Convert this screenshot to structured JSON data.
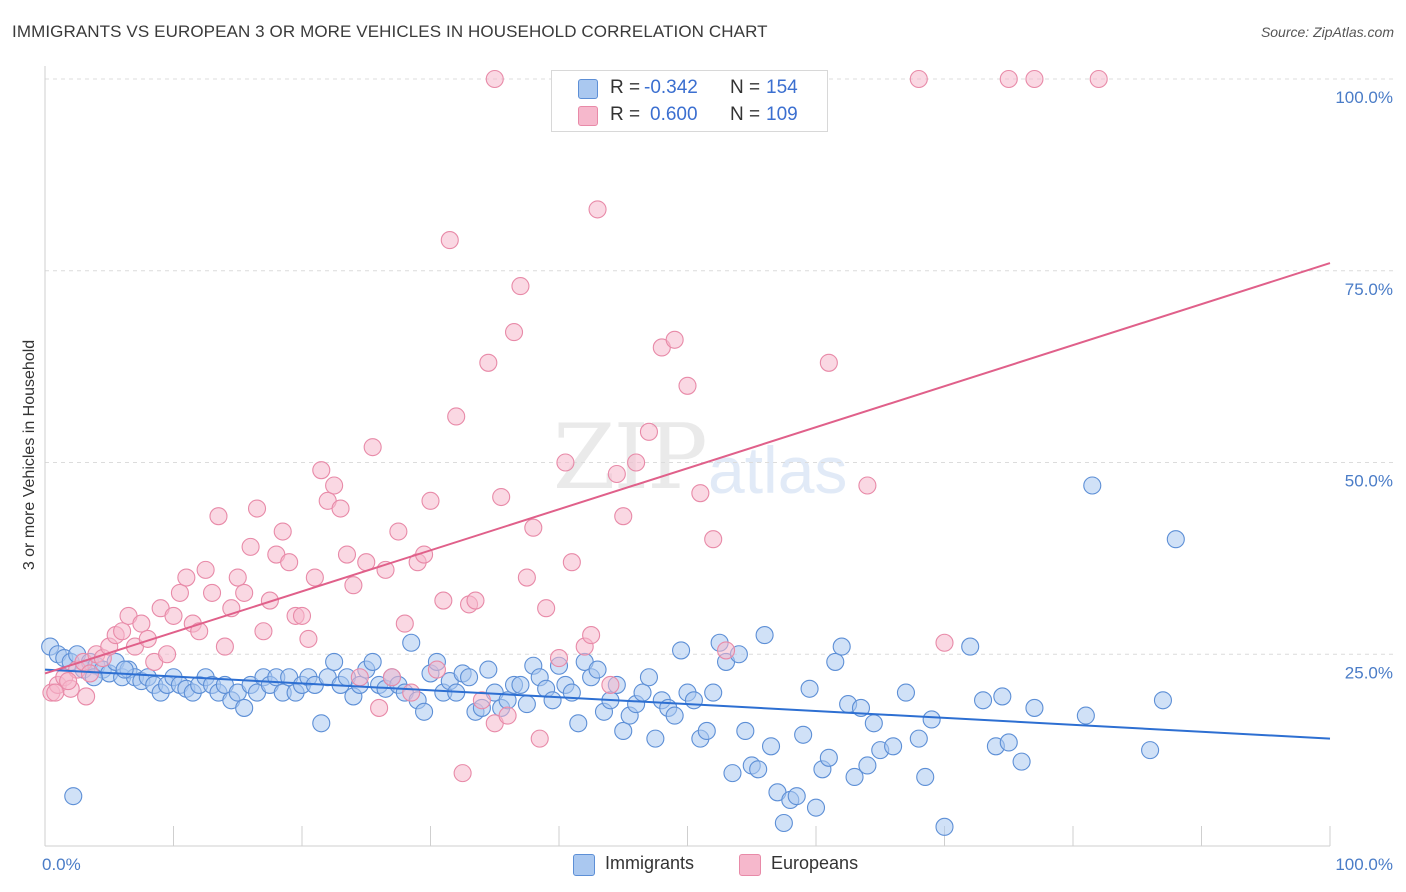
{
  "title": "IMMIGRANTS VS EUROPEAN 3 OR MORE VEHICLES IN HOUSEHOLD CORRELATION CHART",
  "source": "Source: ZipAtlas.com",
  "watermark": {
    "zip": "ZIP",
    "atlas": "atlas"
  },
  "legend": {
    "rows": [
      {
        "r_label": "R =",
        "r_value": "-0.342",
        "n_label": "N =",
        "n_value": "154",
        "color": "#aac8f0"
      },
      {
        "r_label": "R =",
        "r_value": "0.600",
        "n_label": "N =",
        "n_value": "109",
        "color": "#f6b8cc"
      }
    ]
  },
  "bottom_legend": [
    {
      "label": "Immigrants",
      "color": "#aac8f0"
    },
    {
      "label": "Europeans",
      "color": "#f6b8cc"
    }
  ],
  "chart_data": {
    "type": "scatter",
    "title": "IMMIGRANTS VS EUROPEAN 3 OR MORE VEHICLES IN HOUSEHOLD CORRELATION CHART",
    "xlabel": "",
    "ylabel": "3 or more Vehicles in Household",
    "xlim": [
      0,
      100
    ],
    "ylim": [
      0,
      100
    ],
    "x_tick_labels": [
      "0.0%",
      "100.0%"
    ],
    "y_tick_labels": [
      "25.0%",
      "50.0%",
      "75.0%",
      "100.0%"
    ],
    "y_ticks": [
      25,
      50,
      75,
      100
    ],
    "grid": "horizontal dashed",
    "colors": {
      "immigrants_fill": "#aac8f0",
      "immigrants_edge": "#5d8fd6",
      "immigrants_line": "#2d6fd2",
      "europeans_fill": "#f6b8cc",
      "europeans_edge": "#e88aa8",
      "europeans_line": "#e0608a"
    },
    "series": [
      {
        "name": "Immigrants",
        "trend": {
          "x": [
            0,
            100
          ],
          "y": [
            23,
            14
          ]
        },
        "points": [
          [
            0.4,
            26
          ],
          [
            1,
            25
          ],
          [
            1.5,
            24.5
          ],
          [
            2,
            24
          ],
          [
            2.5,
            25
          ],
          [
            3,
            23
          ],
          [
            3.5,
            24
          ],
          [
            4,
            23.5
          ],
          [
            4.5,
            23
          ],
          [
            5,
            22.5
          ],
          [
            5.5,
            24
          ],
          [
            6,
            22
          ],
          [
            6.5,
            23
          ],
          [
            7,
            22
          ],
          [
            7.5,
            21.5
          ],
          [
            8,
            22
          ],
          [
            8.5,
            21
          ],
          [
            9,
            20
          ],
          [
            9.5,
            21
          ],
          [
            10,
            22
          ],
          [
            10.5,
            21
          ],
          [
            11,
            20.5
          ],
          [
            11.5,
            20
          ],
          [
            12,
            21
          ],
          [
            12.5,
            22
          ],
          [
            13,
            21
          ],
          [
            13.5,
            20
          ],
          [
            14,
            21
          ],
          [
            14.5,
            19
          ],
          [
            15,
            20
          ],
          [
            15.5,
            18
          ],
          [
            16,
            21
          ],
          [
            16.5,
            20
          ],
          [
            17,
            22
          ],
          [
            17.5,
            21
          ],
          [
            18,
            22
          ],
          [
            18.5,
            20
          ],
          [
            19,
            22
          ],
          [
            19.5,
            20
          ],
          [
            20,
            21
          ],
          [
            20.5,
            22
          ],
          [
            21,
            21
          ],
          [
            21.5,
            16
          ],
          [
            22,
            22
          ],
          [
            22.5,
            24
          ],
          [
            23,
            21
          ],
          [
            23.5,
            22
          ],
          [
            24,
            19.5
          ],
          [
            24.5,
            21
          ],
          [
            25,
            23
          ],
          [
            25.5,
            24
          ],
          [
            26,
            21
          ],
          [
            26.5,
            20.5
          ],
          [
            27,
            22
          ],
          [
            27.5,
            21
          ],
          [
            28,
            20
          ],
          [
            28.5,
            26.5
          ],
          [
            29,
            19
          ],
          [
            29.5,
            17.5
          ],
          [
            30,
            22.5
          ],
          [
            30.5,
            24
          ],
          [
            31,
            20
          ],
          [
            31.5,
            21.5
          ],
          [
            32,
            20
          ],
          [
            32.5,
            22.5
          ],
          [
            33,
            22
          ],
          [
            33.5,
            17.5
          ],
          [
            34,
            18
          ],
          [
            34.5,
            23
          ],
          [
            35,
            20
          ],
          [
            35.5,
            18
          ],
          [
            36,
            19
          ],
          [
            36.5,
            21
          ],
          [
            37,
            21
          ],
          [
            37.5,
            18.5
          ],
          [
            38,
            23.5
          ],
          [
            38.5,
            22
          ],
          [
            39,
            20.5
          ],
          [
            39.5,
            19
          ],
          [
            40,
            23.5
          ],
          [
            40.5,
            21
          ],
          [
            41,
            20
          ],
          [
            41.5,
            16
          ],
          [
            42,
            24
          ],
          [
            42.5,
            22
          ],
          [
            43,
            23
          ],
          [
            43.5,
            17.5
          ],
          [
            44,
            19
          ],
          [
            44.5,
            21
          ],
          [
            45,
            15
          ],
          [
            45.5,
            17
          ],
          [
            46,
            18.5
          ],
          [
            46.5,
            20
          ],
          [
            47,
            22
          ],
          [
            47.5,
            14
          ],
          [
            48,
            19
          ],
          [
            48.5,
            18
          ],
          [
            49,
            17
          ],
          [
            49.5,
            25.5
          ],
          [
            50,
            20
          ],
          [
            50.5,
            19
          ],
          [
            51,
            14
          ],
          [
            51.5,
            15
          ],
          [
            52,
            20
          ],
          [
            52.5,
            26.5
          ],
          [
            53,
            24
          ],
          [
            53.5,
            9.5
          ],
          [
            54,
            25
          ],
          [
            54.5,
            15
          ],
          [
            55,
            10.5
          ],
          [
            55.5,
            10
          ],
          [
            56,
            27.5
          ],
          [
            56.5,
            13
          ],
          [
            57,
            7
          ],
          [
            57.5,
            3
          ],
          [
            58,
            6
          ],
          [
            58.5,
            6.5
          ],
          [
            59,
            14.5
          ],
          [
            59.5,
            20.5
          ],
          [
            60,
            5
          ],
          [
            60.5,
            10
          ],
          [
            61,
            11.5
          ],
          [
            61.5,
            24
          ],
          [
            62,
            26
          ],
          [
            62.5,
            18.5
          ],
          [
            63,
            9
          ],
          [
            63.5,
            18
          ],
          [
            64,
            10.5
          ],
          [
            64.5,
            16
          ],
          [
            65,
            12.5
          ],
          [
            66,
            13
          ],
          [
            67,
            20
          ],
          [
            68,
            14
          ],
          [
            68.5,
            9
          ],
          [
            69,
            16.5
          ],
          [
            70,
            2.5
          ],
          [
            72,
            26
          ],
          [
            73,
            19
          ],
          [
            74,
            13
          ],
          [
            74.5,
            19.5
          ],
          [
            75,
            13.5
          ],
          [
            76,
            11
          ],
          [
            77,
            18
          ],
          [
            81,
            17
          ],
          [
            81.5,
            47
          ],
          [
            86,
            12.5
          ],
          [
            87,
            19
          ],
          [
            88,
            40
          ],
          [
            2.2,
            6.5
          ],
          [
            3.8,
            22
          ],
          [
            6.2,
            23
          ]
        ]
      },
      {
        "name": "Europeans",
        "trend": {
          "x": [
            0,
            100
          ],
          "y": [
            22.5,
            76
          ]
        },
        "points": [
          [
            0.5,
            20
          ],
          [
            1,
            21
          ],
          [
            1.5,
            22
          ],
          [
            2,
            20.5
          ],
          [
            2.5,
            23
          ],
          [
            3,
            24
          ],
          [
            3.5,
            22.5
          ],
          [
            4,
            25
          ],
          [
            4.5,
            24.5
          ],
          [
            5,
            26
          ],
          [
            5.5,
            27.5
          ],
          [
            6,
            28
          ],
          [
            6.5,
            30
          ],
          [
            7,
            26
          ],
          [
            7.5,
            29
          ],
          [
            8,
            27
          ],
          [
            8.5,
            24
          ],
          [
            9,
            31
          ],
          [
            9.5,
            25
          ],
          [
            10,
            30
          ],
          [
            10.5,
            33
          ],
          [
            11,
            35
          ],
          [
            11.5,
            29
          ],
          [
            12,
            28
          ],
          [
            12.5,
            36
          ],
          [
            13,
            33
          ],
          [
            13.5,
            43
          ],
          [
            14,
            26
          ],
          [
            14.5,
            31
          ],
          [
            15,
            35
          ],
          [
            15.5,
            33
          ],
          [
            16,
            39
          ],
          [
            16.5,
            44
          ],
          [
            17,
            28
          ],
          [
            17.5,
            32
          ],
          [
            18,
            38
          ],
          [
            18.5,
            41
          ],
          [
            19,
            37
          ],
          [
            19.5,
            30
          ],
          [
            20,
            30
          ],
          [
            20.5,
            27
          ],
          [
            21,
            35
          ],
          [
            21.5,
            49
          ],
          [
            22,
            45
          ],
          [
            22.5,
            47
          ],
          [
            23,
            44
          ],
          [
            23.5,
            38
          ],
          [
            24,
            34
          ],
          [
            24.5,
            22
          ],
          [
            25,
            37
          ],
          [
            25.5,
            52
          ],
          [
            26,
            18
          ],
          [
            26.5,
            36
          ],
          [
            27,
            22
          ],
          [
            27.5,
            41
          ],
          [
            28,
            29
          ],
          [
            28.5,
            20
          ],
          [
            29,
            37
          ],
          [
            29.5,
            38
          ],
          [
            30,
            45
          ],
          [
            30.5,
            23
          ],
          [
            31,
            32
          ],
          [
            31.5,
            79
          ],
          [
            32,
            56
          ],
          [
            32.5,
            9.5
          ],
          [
            33,
            31.5
          ],
          [
            33.5,
            32
          ],
          [
            34,
            19
          ],
          [
            34.5,
            63
          ],
          [
            35,
            16
          ],
          [
            35.5,
            45.5
          ],
          [
            36,
            17
          ],
          [
            36.5,
            67
          ],
          [
            37,
            73
          ],
          [
            37.5,
            35
          ],
          [
            38,
            41.5
          ],
          [
            38.5,
            14
          ],
          [
            39,
            31
          ],
          [
            40,
            24.5
          ],
          [
            40.5,
            50
          ],
          [
            41,
            37
          ],
          [
            42,
            26
          ],
          [
            42.5,
            27.5
          ],
          [
            43,
            83
          ],
          [
            44,
            21
          ],
          [
            44.5,
            48.5
          ],
          [
            45,
            43
          ],
          [
            46,
            50
          ],
          [
            47,
            54
          ],
          [
            48,
            65
          ],
          [
            49,
            66
          ],
          [
            50,
            60
          ],
          [
            51,
            46
          ],
          [
            52,
            40
          ],
          [
            53,
            25.5
          ],
          [
            55,
            100
          ],
          [
            58,
            100
          ],
          [
            61,
            63
          ],
          [
            64,
            47
          ],
          [
            68,
            100
          ],
          [
            70,
            26.5
          ],
          [
            75,
            100
          ],
          [
            77,
            100
          ],
          [
            82,
            100
          ],
          [
            35,
            100
          ],
          [
            0.8,
            20
          ],
          [
            1.8,
            21.5
          ],
          [
            3.2,
            19.5
          ]
        ]
      }
    ]
  }
}
